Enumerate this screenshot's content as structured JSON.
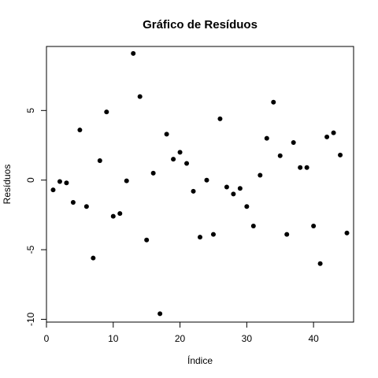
{
  "chart_data": {
    "type": "scatter",
    "title": "Gráfico de Resíduos",
    "xlabel": "Índice",
    "ylabel": "Resíduos",
    "xlim": [
      0,
      46
    ],
    "ylim": [
      -10.2,
      9.6
    ],
    "x_ticks": [
      0,
      10,
      20,
      30,
      40
    ],
    "y_ticks": [
      -10,
      -5,
      0,
      5
    ],
    "grid": false,
    "legend": "none",
    "point_color": "#000000",
    "x": [
      1,
      2,
      3,
      4,
      5,
      6,
      7,
      8,
      9,
      10,
      11,
      12,
      13,
      14,
      15,
      16,
      17,
      18,
      19,
      20,
      21,
      22,
      23,
      24,
      25,
      26,
      27,
      28,
      29,
      30,
      31,
      32,
      33,
      34,
      35,
      36,
      37,
      38,
      39,
      40,
      41,
      42,
      43,
      44,
      45
    ],
    "y": [
      -0.7,
      -0.1,
      -0.2,
      -1.6,
      3.6,
      -1.9,
      -5.6,
      1.4,
      4.9,
      -2.6,
      -2.4,
      -0.05,
      9.1,
      6.0,
      -4.3,
      0.5,
      -9.6,
      3.3,
      1.5,
      2.0,
      1.2,
      -0.8,
      -4.1,
      0.0,
      -3.9,
      4.4,
      -0.5,
      -1.0,
      -0.6,
      -1.9,
      -3.3,
      0.35,
      3.0,
      5.6,
      1.75,
      -3.9,
      2.7,
      0.9,
      0.9,
      -3.3,
      -6.0,
      3.1,
      3.4,
      1.8,
      -3.8
    ]
  }
}
